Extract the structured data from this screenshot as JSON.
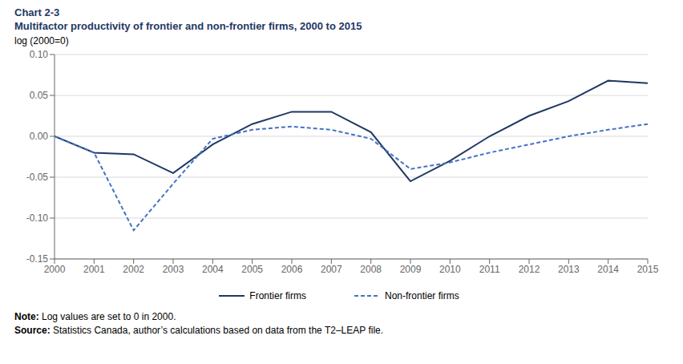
{
  "chart_data": {
    "type": "line",
    "chart_label": "Chart 2-3",
    "title": "Multifactor productivity of frontier and non-frontier firms, 2000 to 2015",
    "y_label": "log (2000=0)",
    "x": [
      2000,
      2001,
      2002,
      2003,
      2004,
      2005,
      2006,
      2007,
      2008,
      2009,
      2010,
      2011,
      2012,
      2013,
      2014,
      2015
    ],
    "series": [
      {
        "name": "Frontier firms",
        "color": "#1f3864",
        "line_style": "solid",
        "values": [
          0.0,
          -0.02,
          -0.022,
          -0.045,
          -0.01,
          0.015,
          0.03,
          0.03,
          0.005,
          -0.055,
          -0.03,
          0.0,
          0.025,
          0.043,
          0.068,
          0.065
        ]
      },
      {
        "name": "Non-frontier firms",
        "color": "#4472c4",
        "line_style": "dashed",
        "values": [
          0.0,
          -0.02,
          -0.115,
          -0.058,
          -0.003,
          0.008,
          0.012,
          0.008,
          -0.003,
          -0.04,
          -0.032,
          -0.02,
          -0.01,
          0.0,
          0.008,
          0.015
        ]
      }
    ],
    "xlim": [
      2000,
      2015
    ],
    "xticks": [
      2000,
      2001,
      2002,
      2003,
      2004,
      2005,
      2006,
      2007,
      2008,
      2009,
      2010,
      2011,
      2012,
      2013,
      2014,
      2015
    ],
    "ylim": [
      -0.15,
      0.1
    ],
    "yticks": [
      -0.15,
      {
        "value": -0.1,
        "label": "-0.10"
      },
      -0.05,
      {
        "value": 0,
        "label": "0.00"
      },
      0.05,
      {
        "value": 0.1,
        "label": "0.10"
      }
    ],
    "grid": true,
    "legend": "bottom",
    "title_color": "#1f3864",
    "note_label": "Note:",
    "note": "Log values are set to 0 in 2000.",
    "source_label": "Source:",
    "source": "Statistics Canada, author’s calculations based on data from the T2–LEAP file."
  }
}
